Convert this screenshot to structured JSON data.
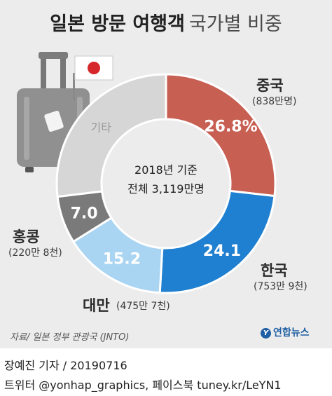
{
  "title": {
    "bold": "일본 방문 여행객",
    "light": "국가별 비중"
  },
  "chart_data": {
    "type": "pie",
    "center_label": [
      "2018년 기준",
      "전체 3,119만명"
    ],
    "slices": [
      {
        "name": "중국",
        "value": 26.8,
        "label": "26.8%",
        "sub": "(838만명)",
        "color": "#c75f52",
        "text_color": "#ffffff"
      },
      {
        "name": "한국",
        "value": 24.1,
        "label": "24.1",
        "sub": "(753만 9천)",
        "color": "#1f7fd0",
        "text_color": "#ffffff"
      },
      {
        "name": "대만",
        "value": 15.2,
        "label": "15.2",
        "sub": "(475만 7천)",
        "color": "#a9d4f2",
        "text_color": "#ffffff"
      },
      {
        "name": "홍콩",
        "value": 7.0,
        "label": "7.0",
        "sub": "(220만 8천)",
        "color": "#7a7a7a",
        "text_color": "#ffffff"
      },
      {
        "name": "기타",
        "value": 26.9,
        "label": "기타",
        "sub": "",
        "color": "#d6d6d6",
        "text_color": "#999999"
      }
    ]
  },
  "source": "자료/ 일본 정부 관광국 (JNTO)",
  "logo": "연합뉴스",
  "footer": {
    "line1": "장예진 기자 / 20190716",
    "line2": "트위터 @yonhap_graphics, 페이스북 tuney.kr/LeYN1"
  }
}
